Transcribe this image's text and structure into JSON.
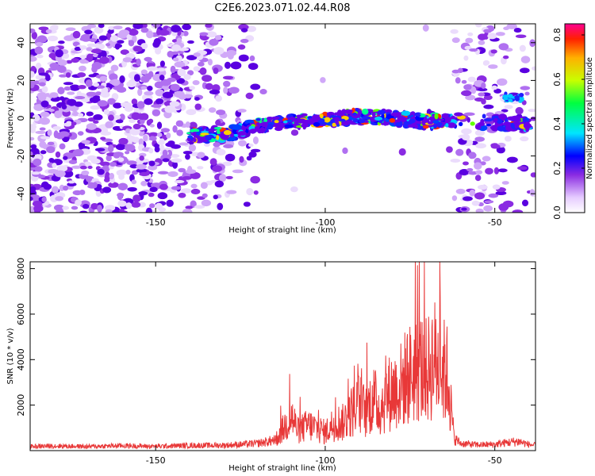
{
  "title": "C2E6.2023.071.02.44.R08",
  "chart_data": [
    {
      "type": "heatmap",
      "xlabel": "Height of straight line (km)",
      "ylabel": "Frequency (Hz)",
      "xlim": [
        -187,
        -38
      ],
      "ylim": [
        -50,
        50
      ],
      "xticks": [
        -150,
        -100,
        -50
      ],
      "yticks": [
        -40,
        -20,
        0,
        20,
        40
      ],
      "colorbar": {
        "label": "Normalized spectral amplitude",
        "range": [
          0,
          0.85
        ],
        "ticks": [
          "0.0",
          "0.2",
          "0.4",
          "0.6",
          "0.8"
        ]
      },
      "ridge": [
        {
          "x": -140,
          "y": -9
        },
        {
          "x": -128,
          "y": -8
        },
        {
          "x": -120,
          "y": -4
        },
        {
          "x": -110,
          "y": -2
        },
        {
          "x": -100,
          "y": -1
        },
        {
          "x": -90,
          "y": 1
        },
        {
          "x": -80,
          "y": 0
        },
        {
          "x": -70,
          "y": -2
        },
        {
          "x": -62,
          "y": -1
        },
        {
          "x": -45,
          "y": -3
        },
        {
          "x": -40,
          "y": -3
        }
      ]
    },
    {
      "type": "line",
      "xlabel": "Height of straight line (km)",
      "ylabel": "SNR (10 * v/v)",
      "xlim": [
        -187,
        -38
      ],
      "ylim": [
        0,
        8300
      ],
      "xticks": [
        -150,
        -100,
        -50
      ],
      "yticks": [
        2000,
        4000,
        6000,
        8000
      ],
      "series": [
        {
          "color": "#e83838",
          "x": [
            -187,
            -180,
            -170,
            -160,
            -150,
            -140,
            -130,
            -125,
            -120,
            -115,
            -112,
            -110,
            -108,
            -105,
            -102,
            -100,
            -97,
            -95,
            -92,
            -90,
            -88,
            -86,
            -84,
            -82,
            -80,
            -78,
            -76,
            -74,
            -72,
            -70,
            -68,
            -66,
            -64,
            -62,
            -60,
            -55,
            -50,
            -46,
            -43,
            -40,
            -38
          ],
          "y": [
            200,
            230,
            200,
            240,
            210,
            250,
            260,
            300,
            350,
            500,
            1300,
            1900,
            1100,
            1400,
            1200,
            1000,
            1600,
            1500,
            2200,
            2600,
            2100,
            2900,
            2300,
            3000,
            3300,
            3500,
            4100,
            4300,
            4600,
            4300,
            5100,
            4500,
            4200,
            600,
            350,
            280,
            300,
            400,
            450,
            300,
            250
          ]
        }
      ]
    }
  ]
}
